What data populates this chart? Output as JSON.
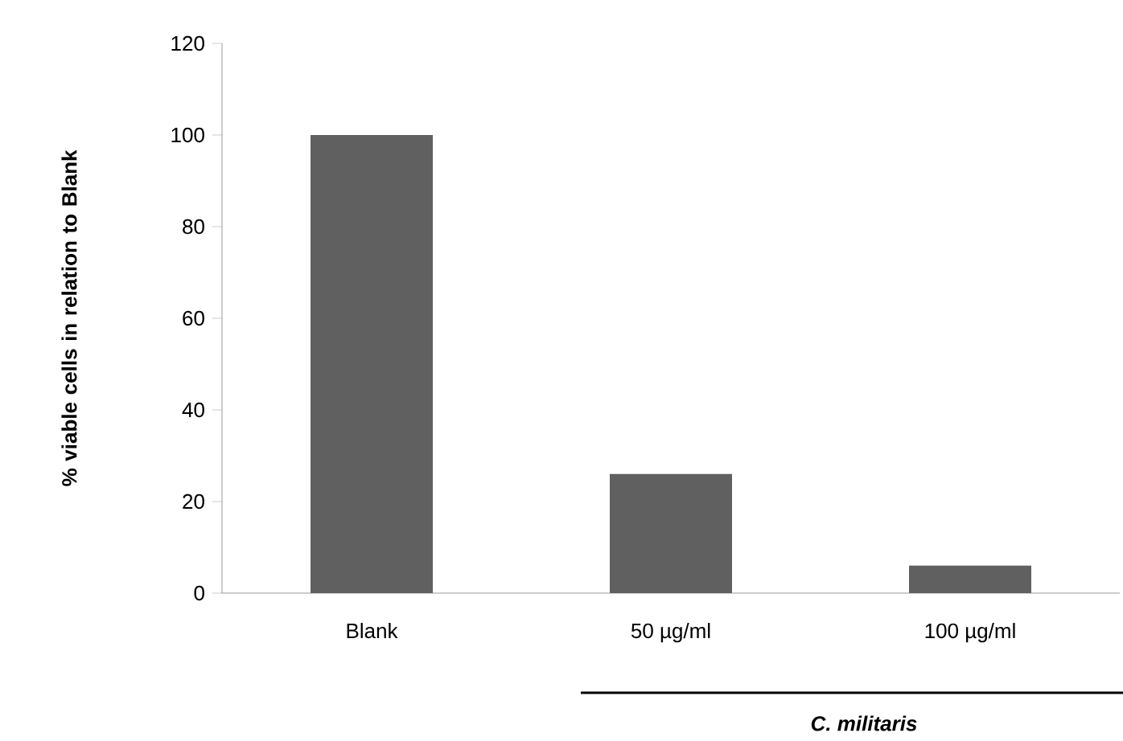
{
  "chart_data": {
    "type": "bar",
    "ylabel": "% viable cells in relation to Blank",
    "categories": [
      "Blank",
      "50 µg/ml",
      "100 µg/ml"
    ],
    "values": [
      100,
      26,
      6
    ],
    "color": "#606060",
    "ylim": [
      0,
      120
    ],
    "yticks": [
      0,
      20,
      40,
      60,
      80,
      100,
      120
    ],
    "grid": false,
    "annotations": [
      "C. militaris"
    ]
  }
}
